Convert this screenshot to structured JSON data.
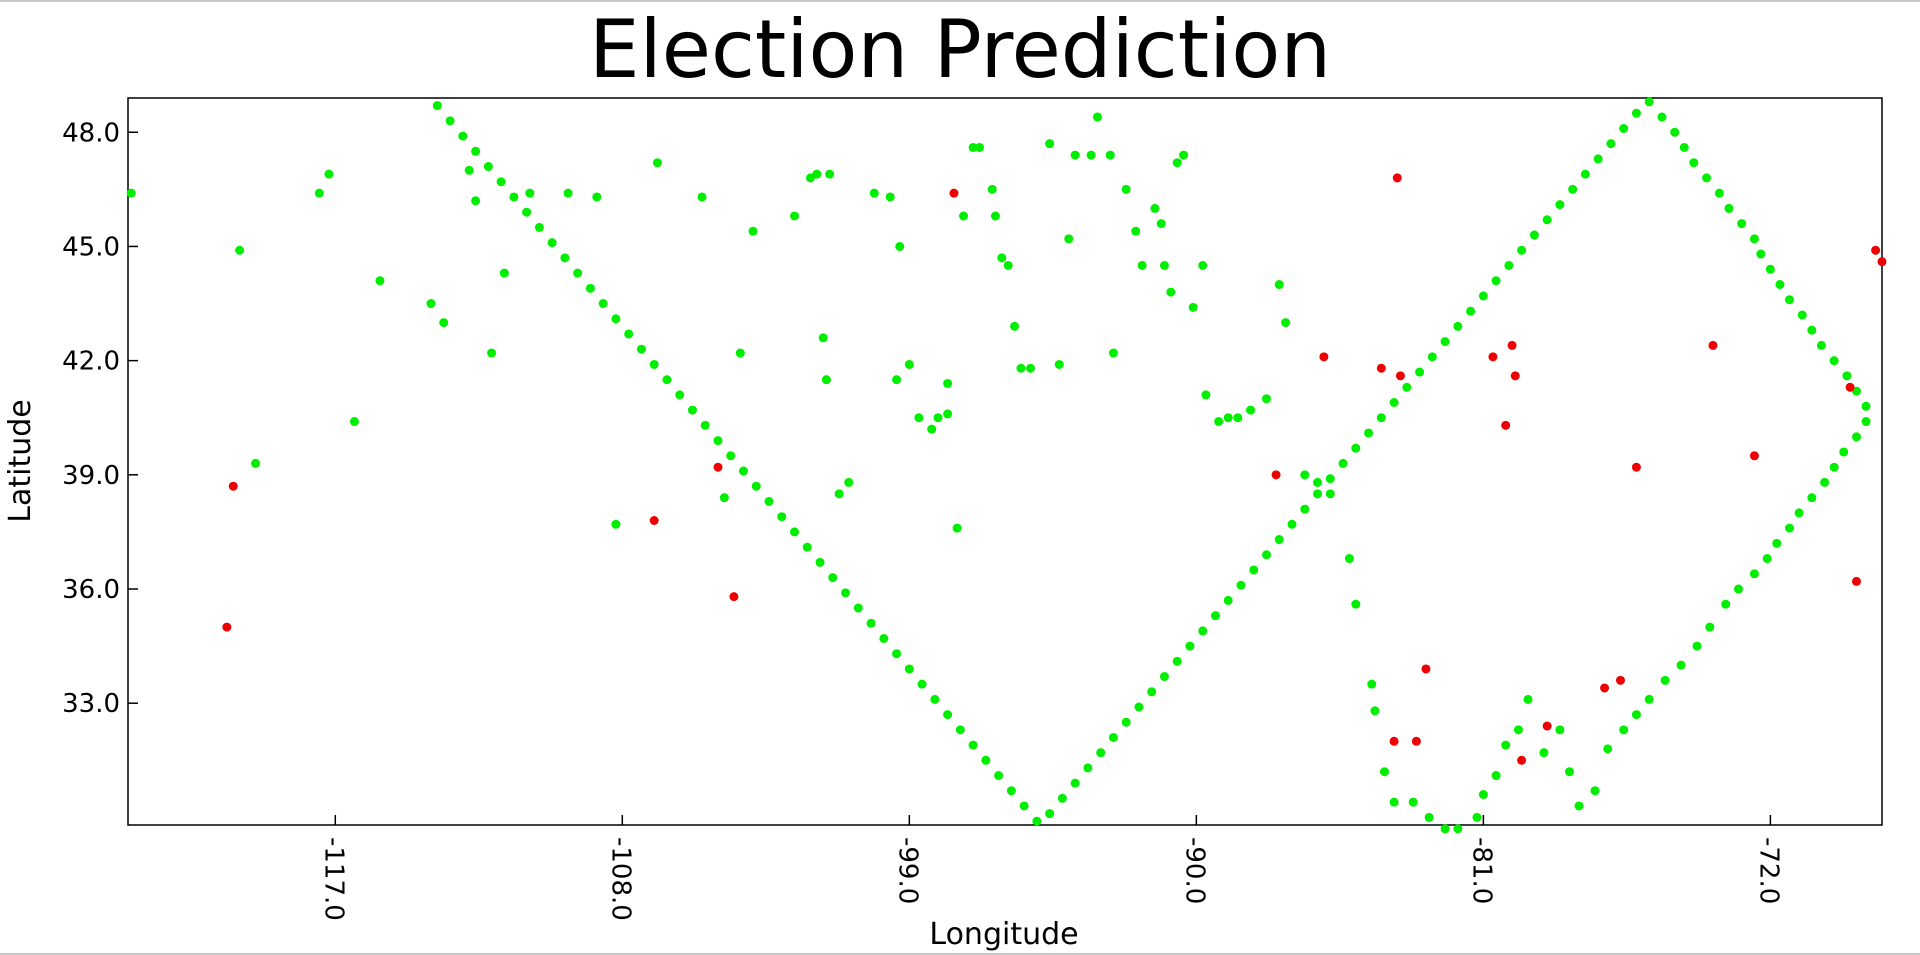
{
  "chart_data": {
    "type": "scatter",
    "title": "Election Prediction",
    "xlabel": "Longitude",
    "ylabel": "Latitude",
    "xlim": [
      -123.5,
      -68.5
    ],
    "ylim": [
      29.8,
      48.9
    ],
    "xticks": [
      -117.0,
      -108.0,
      -99.0,
      -90.0,
      -81.0,
      -72.0
    ],
    "yticks": [
      33.0,
      36.0,
      39.0,
      42.0,
      45.0,
      48.0
    ],
    "grid": false,
    "colors": {
      "green": "#00ee00",
      "red": "#ee0000"
    },
    "series": [
      {
        "color": "green",
        "points": [
          [
            -123.4,
            46.4
          ],
          [
            -120.0,
            44.9
          ],
          [
            -119.5,
            39.3
          ],
          [
            -117.2,
            46.9
          ],
          [
            -117.5,
            46.4
          ],
          [
            -116.4,
            40.4
          ],
          [
            -115.6,
            44.1
          ],
          [
            -114.0,
            43.5
          ],
          [
            -113.6,
            43.0
          ],
          [
            -112.8,
            47.0
          ],
          [
            -112.6,
            46.2
          ],
          [
            -112.1,
            42.2
          ],
          [
            -111.7,
            44.3
          ],
          [
            -110.9,
            46.4
          ],
          [
            -109.7,
            46.4
          ],
          [
            -108.8,
            46.3
          ],
          [
            -108.2,
            37.7
          ],
          [
            -106.9,
            47.2
          ],
          [
            -105.5,
            46.3
          ],
          [
            -104.8,
            38.4
          ],
          [
            -104.3,
            42.2
          ],
          [
            -103.9,
            45.4
          ],
          [
            -102.6,
            45.8
          ],
          [
            -102.1,
            46.8
          ],
          [
            -101.9,
            46.9
          ],
          [
            -101.7,
            42.6
          ],
          [
            -101.6,
            41.5
          ],
          [
            -101.5,
            46.9
          ],
          [
            -101.2,
            38.5
          ],
          [
            -100.9,
            38.8
          ],
          [
            -100.1,
            46.4
          ],
          [
            -99.6,
            46.3
          ],
          [
            -99.4,
            41.5
          ],
          [
            -99.3,
            45.0
          ],
          [
            -99.0,
            41.9
          ],
          [
            -98.7,
            40.5
          ],
          [
            -98.3,
            40.2
          ],
          [
            -98.1,
            40.5
          ],
          [
            -97.8,
            41.4
          ],
          [
            -97.8,
            40.6
          ],
          [
            -97.5,
            37.6
          ],
          [
            -97.3,
            45.8
          ],
          [
            -97.0,
            47.6
          ],
          [
            -96.8,
            47.6
          ],
          [
            -96.4,
            46.5
          ],
          [
            -96.3,
            45.8
          ],
          [
            -96.1,
            44.7
          ],
          [
            -95.9,
            44.5
          ],
          [
            -95.7,
            42.9
          ],
          [
            -95.5,
            41.8
          ],
          [
            -95.2,
            41.8
          ],
          [
            -94.6,
            47.7
          ],
          [
            -94.3,
            41.9
          ],
          [
            -94.0,
            45.2
          ],
          [
            -93.8,
            47.4
          ],
          [
            -93.3,
            47.4
          ],
          [
            -93.1,
            48.4
          ],
          [
            -92.7,
            47.4
          ],
          [
            -92.6,
            42.2
          ],
          [
            -92.2,
            46.5
          ],
          [
            -91.9,
            45.4
          ],
          [
            -91.7,
            44.5
          ],
          [
            -91.3,
            46.0
          ],
          [
            -91.1,
            45.6
          ],
          [
            -91.0,
            44.5
          ],
          [
            -90.8,
            43.8
          ],
          [
            -90.6,
            47.2
          ],
          [
            -90.4,
            47.4
          ],
          [
            -90.1,
            43.4
          ],
          [
            -89.8,
            44.5
          ],
          [
            -89.7,
            41.1
          ],
          [
            -89.3,
            40.4
          ],
          [
            -89.0,
            40.5
          ],
          [
            -88.7,
            40.5
          ],
          [
            -88.3,
            40.7
          ],
          [
            -87.8,
            41.0
          ],
          [
            -87.4,
            44.0
          ],
          [
            -87.2,
            43.0
          ],
          [
            -86.6,
            39.0
          ],
          [
            -86.2,
            38.8
          ],
          [
            -85.8,
            38.5
          ],
          [
            -85.2,
            36.8
          ],
          [
            -85.0,
            35.6
          ],
          [
            -84.5,
            33.5
          ],
          [
            -84.4,
            32.8
          ],
          [
            -84.1,
            31.2
          ],
          [
            -83.8,
            30.4
          ],
          [
            -83.2,
            30.4
          ],
          [
            -82.7,
            30.0
          ],
          [
            -82.2,
            29.7
          ],
          [
            -81.8,
            29.7
          ],
          [
            -81.2,
            30.0
          ],
          [
            -81.0,
            30.6
          ],
          [
            -80.6,
            31.1
          ],
          [
            -80.3,
            31.9
          ],
          [
            -79.9,
            32.3
          ],
          [
            -79.6,
            33.1
          ],
          [
            -79.1,
            31.7
          ],
          [
            -78.6,
            32.3
          ],
          [
            -78.3,
            31.2
          ],
          [
            -78.0,
            30.3
          ],
          [
            -77.5,
            30.7
          ],
          [
            -77.1,
            31.8
          ],
          [
            -76.6,
            32.3
          ],
          [
            -76.2,
            32.7
          ],
          [
            -75.8,
            33.1
          ],
          [
            -75.3,
            33.6
          ],
          [
            -74.8,
            34.0
          ],
          [
            -74.3,
            34.5
          ],
          [
            -73.9,
            35.0
          ],
          [
            -73.4,
            35.6
          ],
          [
            -73.0,
            36.0
          ],
          [
            -72.5,
            36.4
          ],
          [
            -72.1,
            36.8
          ],
          [
            -71.8,
            37.2
          ],
          [
            -71.4,
            37.6
          ],
          [
            -71.1,
            38.0
          ],
          [
            -70.7,
            38.4
          ],
          [
            -70.3,
            38.8
          ],
          [
            -70.0,
            39.2
          ],
          [
            -69.7,
            39.6
          ],
          [
            -69.3,
            40.0
          ],
          [
            -69.0,
            40.4
          ],
          [
            -69.0,
            40.8
          ],
          [
            -69.3,
            41.2
          ],
          [
            -69.6,
            41.6
          ],
          [
            -70.0,
            42.0
          ],
          [
            -70.4,
            42.4
          ],
          [
            -70.7,
            42.8
          ],
          [
            -71.0,
            43.2
          ],
          [
            -71.4,
            43.6
          ],
          [
            -71.7,
            44.0
          ],
          [
            -72.0,
            44.4
          ],
          [
            -72.3,
            44.8
          ],
          [
            -72.5,
            45.2
          ],
          [
            -72.9,
            45.6
          ],
          [
            -73.3,
            46.0
          ],
          [
            -73.6,
            46.4
          ],
          [
            -74.0,
            46.8
          ],
          [
            -74.4,
            47.2
          ],
          [
            -74.7,
            47.6
          ],
          [
            -75.0,
            48.0
          ],
          [
            -75.4,
            48.4
          ],
          [
            -75.8,
            48.8
          ],
          [
            -76.2,
            48.5
          ],
          [
            -76.6,
            48.1
          ],
          [
            -77.0,
            47.7
          ],
          [
            -77.4,
            47.3
          ],
          [
            -77.8,
            46.9
          ],
          [
            -78.2,
            46.5
          ],
          [
            -78.6,
            46.1
          ],
          [
            -79.0,
            45.7
          ],
          [
            -79.4,
            45.3
          ],
          [
            -79.8,
            44.9
          ],
          [
            -80.2,
            44.5
          ],
          [
            -80.6,
            44.1
          ],
          [
            -81.0,
            43.7
          ],
          [
            -81.4,
            43.3
          ],
          [
            -81.8,
            42.9
          ],
          [
            -82.2,
            42.5
          ],
          [
            -82.6,
            42.1
          ],
          [
            -83.0,
            41.7
          ],
          [
            -83.4,
            41.3
          ],
          [
            -83.8,
            40.9
          ],
          [
            -84.2,
            40.5
          ],
          [
            -84.6,
            40.1
          ],
          [
            -85.0,
            39.7
          ],
          [
            -85.4,
            39.3
          ],
          [
            -85.8,
            38.9
          ],
          [
            -86.2,
            38.5
          ],
          [
            -86.6,
            38.1
          ],
          [
            -87.0,
            37.7
          ],
          [
            -87.4,
            37.3
          ],
          [
            -87.8,
            36.9
          ],
          [
            -88.2,
            36.5
          ],
          [
            -88.6,
            36.1
          ],
          [
            -89.0,
            35.7
          ],
          [
            -89.4,
            35.3
          ],
          [
            -89.8,
            34.9
          ],
          [
            -90.2,
            34.5
          ],
          [
            -90.6,
            34.1
          ],
          [
            -91.0,
            33.7
          ],
          [
            -91.4,
            33.3
          ],
          [
            -91.8,
            32.9
          ],
          [
            -92.2,
            32.5
          ],
          [
            -92.6,
            32.1
          ],
          [
            -93.0,
            31.7
          ],
          [
            -93.4,
            31.3
          ],
          [
            -93.8,
            30.9
          ],
          [
            -94.2,
            30.5
          ],
          [
            -94.6,
            30.1
          ],
          [
            -95.0,
            29.9
          ],
          [
            -95.4,
            30.3
          ],
          [
            -95.8,
            30.7
          ],
          [
            -96.2,
            31.1
          ],
          [
            -96.6,
            31.5
          ],
          [
            -97.0,
            31.9
          ],
          [
            -97.4,
            32.3
          ],
          [
            -97.8,
            32.7
          ],
          [
            -98.2,
            33.1
          ],
          [
            -98.6,
            33.5
          ],
          [
            -99.0,
            33.9
          ],
          [
            -99.4,
            34.3
          ],
          [
            -99.8,
            34.7
          ],
          [
            -100.2,
            35.1
          ],
          [
            -100.6,
            35.5
          ],
          [
            -101.0,
            35.9
          ],
          [
            -101.4,
            36.3
          ],
          [
            -101.8,
            36.7
          ],
          [
            -102.2,
            37.1
          ],
          [
            -102.6,
            37.5
          ],
          [
            -103.0,
            37.9
          ],
          [
            -103.4,
            38.3
          ],
          [
            -103.8,
            38.7
          ],
          [
            -104.2,
            39.1
          ],
          [
            -104.6,
            39.5
          ],
          [
            -105.0,
            39.9
          ],
          [
            -105.4,
            40.3
          ],
          [
            -105.8,
            40.7
          ],
          [
            -106.2,
            41.1
          ],
          [
            -106.6,
            41.5
          ],
          [
            -107.0,
            41.9
          ],
          [
            -107.4,
            42.3
          ],
          [
            -107.8,
            42.7
          ],
          [
            -108.2,
            43.1
          ],
          [
            -108.6,
            43.5
          ],
          [
            -109.0,
            43.9
          ],
          [
            -109.4,
            44.3
          ],
          [
            -109.8,
            44.7
          ],
          [
            -110.2,
            45.1
          ],
          [
            -110.6,
            45.5
          ],
          [
            -111.0,
            45.9
          ],
          [
            -111.4,
            46.3
          ],
          [
            -111.8,
            46.7
          ],
          [
            -112.2,
            47.1
          ],
          [
            -112.6,
            47.5
          ],
          [
            -113.0,
            47.9
          ],
          [
            -113.4,
            48.3
          ],
          [
            -113.8,
            48.7
          ]
        ]
      },
      {
        "color": "red",
        "points": [
          [
            -120.4,
            35.0
          ],
          [
            -120.2,
            38.7
          ],
          [
            -105.0,
            39.2
          ],
          [
            -107.0,
            37.8
          ],
          [
            -104.5,
            35.8
          ],
          [
            -97.6,
            46.4
          ],
          [
            -87.5,
            39.0
          ],
          [
            -86.0,
            42.1
          ],
          [
            -83.7,
            46.8
          ],
          [
            -84.2,
            41.8
          ],
          [
            -83.6,
            41.6
          ],
          [
            -80.7,
            42.1
          ],
          [
            -80.1,
            42.4
          ],
          [
            -80.0,
            41.6
          ],
          [
            -80.3,
            40.3
          ],
          [
            -76.2,
            39.2
          ],
          [
            -73.8,
            42.4
          ],
          [
            -72.5,
            39.5
          ],
          [
            -69.3,
            36.2
          ],
          [
            -68.7,
            44.9
          ],
          [
            -69.5,
            41.3
          ],
          [
            -68.5,
            44.6
          ],
          [
            -82.8,
            33.9
          ],
          [
            -83.1,
            32.0
          ],
          [
            -83.8,
            32.0
          ],
          [
            -79.0,
            32.4
          ],
          [
            -79.8,
            31.5
          ],
          [
            -77.2,
            33.4
          ],
          [
            -76.7,
            33.6
          ]
        ]
      }
    ]
  }
}
